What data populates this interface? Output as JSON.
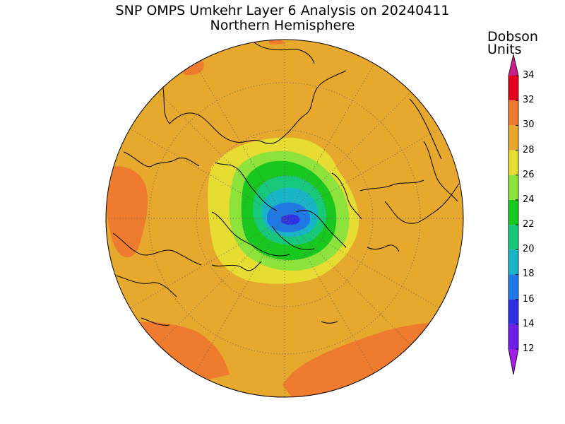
{
  "title": "SNP OMPS Umkehr Layer 6 Analysis on 20240411",
  "subtitle": "Northern Hemisphere",
  "colorbar": {
    "title_line1": "Dobson",
    "title_line2": "Units",
    "ticks": [
      "34",
      "32",
      "30",
      "28",
      "26",
      "24",
      "22",
      "20",
      "18",
      "16",
      "14",
      "12"
    ],
    "bands": [
      {
        "min": 32,
        "max": 34,
        "color": "#e6001e"
      },
      {
        "min": 30,
        "max": 32,
        "color": "#ee7b2e"
      },
      {
        "min": 28,
        "max": 30,
        "color": "#e6a92e"
      },
      {
        "min": 26,
        "max": 28,
        "color": "#e6dc32"
      },
      {
        "min": 24,
        "max": 26,
        "color": "#8ee23c"
      },
      {
        "min": 22,
        "max": 24,
        "color": "#18c81e"
      },
      {
        "min": 20,
        "max": 22,
        "color": "#18c87a"
      },
      {
        "min": 18,
        "max": 20,
        "color": "#18b4c8"
      },
      {
        "min": 16,
        "max": 18,
        "color": "#1e78e6"
      },
      {
        "min": 14,
        "max": 16,
        "color": "#3030e6"
      },
      {
        "min": 12,
        "max": 14,
        "color": "#6e1ee6"
      }
    ],
    "over_color": "#c81e8c",
    "under_color": "#a01ee6"
  },
  "map": {
    "projection": "north polar stereographic",
    "background_value_color": "#e6a92e",
    "graticule": "dotted"
  }
}
